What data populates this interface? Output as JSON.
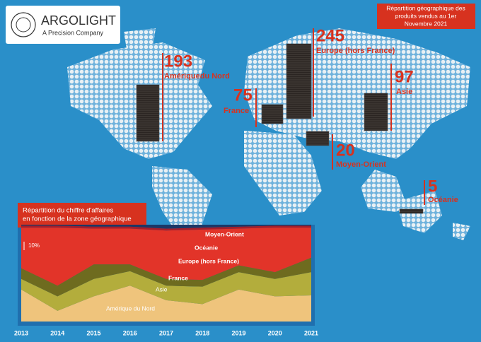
{
  "logo": {
    "name": "ARGOLIGHT",
    "tagline": "A Precision Company"
  },
  "map": {
    "title_lines": [
      "Répartition géographique des",
      "produits vendus au 1er",
      "Novembre 2021"
    ],
    "regions": [
      {
        "value": 193,
        "label": "Amériquedu Nord"
      },
      {
        "value": 245,
        "label": "Europe (hors France)"
      },
      {
        "value": 75,
        "label": "France"
      },
      {
        "value": 97,
        "label": "Asie"
      },
      {
        "value": 20,
        "label": "Moyen-Orient"
      },
      {
        "value": 5,
        "label": "Océanie"
      }
    ]
  },
  "chart_data": {
    "type": "area",
    "title_lines": [
      "Répartition du chiffre d'affaires",
      "en fonction de la zone géographique"
    ],
    "scale_label": "10%",
    "x": [
      2013,
      2014,
      2015,
      2016,
      2017,
      2018,
      2019,
      2020,
      2021
    ],
    "xlim": [
      2013,
      2021
    ],
    "ylim": [
      0,
      100
    ],
    "series": [
      {
        "name": "Amérique du Nord",
        "color": "#efc47c",
        "values": [
          33,
          11,
          26,
          37,
          22,
          18,
          33,
          26,
          27
        ]
      },
      {
        "name": "Asie",
        "color": "#b3ad3c",
        "values": [
          11,
          15,
          18,
          15,
          15,
          18,
          18,
          18,
          24
        ]
      },
      {
        "name": "France",
        "color": "#6e6b1f",
        "values": [
          11,
          11,
          15,
          7,
          7,
          7,
          7,
          7,
          15
        ]
      },
      {
        "name": "Europe (hors France)",
        "color": "#e23429",
        "values": [
          42,
          60,
          37,
          37,
          50,
          52,
          38,
          46,
          31
        ]
      },
      {
        "name": "Océanie",
        "color": "#a51e2a",
        "values": [
          2,
          2,
          2,
          2,
          2,
          2,
          2,
          2,
          2
        ]
      },
      {
        "name": "Moyen-Orient",
        "color": "#1c3766",
        "values": [
          1,
          1,
          2,
          2,
          4,
          3,
          2,
          1,
          1
        ]
      }
    ]
  }
}
